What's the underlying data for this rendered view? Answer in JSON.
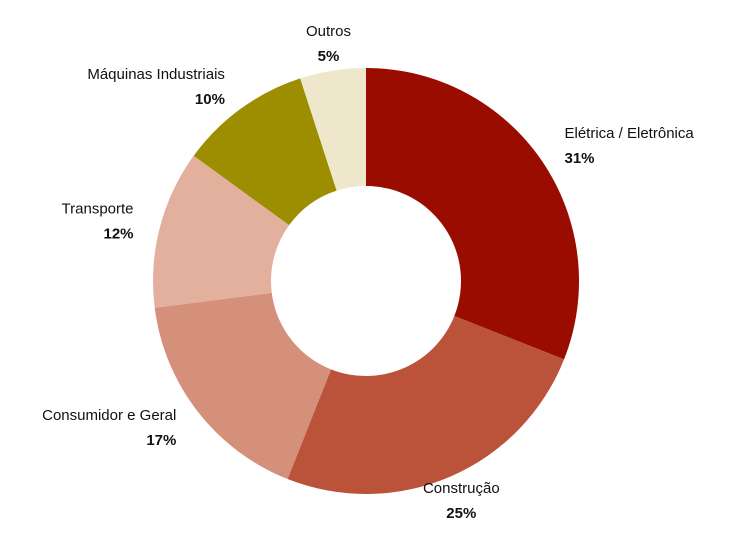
{
  "chart_data": {
    "type": "donut",
    "categories": [
      "Elétrica / Eletrônica",
      "Construção",
      "Consumidor e Geral",
      "Transporte",
      "Máquinas Industriais",
      "Outros"
    ],
    "values": [
      31,
      25,
      17,
      12,
      10,
      5
    ],
    "value_labels": [
      "31%",
      "25%",
      "17%",
      "12%",
      "10%",
      "5%"
    ],
    "colors": [
      "#9b0c00",
      "#bb523a",
      "#d4907a",
      "#e3b09e",
      "#9c8e00",
      "#efe7cb"
    ]
  }
}
